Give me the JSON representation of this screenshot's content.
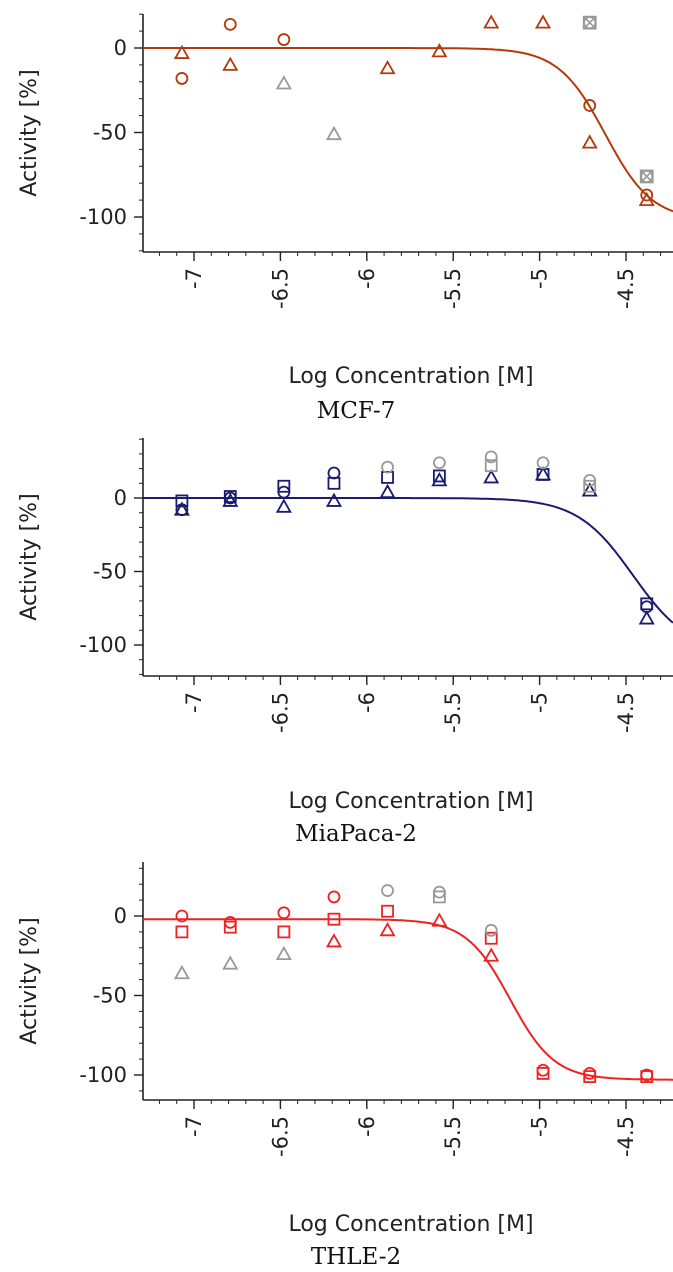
{
  "chart_data": [
    {
      "type": "scatter",
      "caption": "MCF-7",
      "xlabel": "Log Concentration [M]",
      "ylabel": "Activity [%]",
      "xlim": [
        -7.3,
        -4.22
      ],
      "ylim": [
        -120,
        20
      ],
      "x_ticks": [
        -7,
        -6.5,
        -6,
        -5.5,
        -5,
        -4.5
      ],
      "x_tick_labels": [
        "-7",
        "-6.5",
        "-6",
        "-5.5",
        "-5",
        "-4.5"
      ],
      "y_ticks": [
        0,
        -50,
        -100
      ],
      "y_tick_labels": [
        "0",
        "-50",
        "-100"
      ],
      "color": "#b33a0a",
      "excluded_color": "#999999",
      "curve": {
        "top": 0,
        "bottom": -102,
        "log_ac50": -4.62,
        "hill": 3.2
      },
      "series": [
        {
          "marker": "circle",
          "color": "#b33a0a",
          "x": [
            -7.07,
            -6.79,
            -6.48,
            -4.71,
            -4.38
          ],
          "y": [
            -18,
            14,
            5,
            -34,
            -87
          ]
        },
        {
          "marker": "triangle",
          "color": "#b33a0a",
          "x": [
            -7.07,
            -6.79,
            -5.88,
            -5.58,
            -5.28,
            -4.98,
            -4.71,
            -4.38
          ],
          "y": [
            -3,
            -10,
            -12,
            -2,
            15,
            15,
            -56,
            -90
          ]
        },
        {
          "marker": "triangle",
          "color": "#999999",
          "x": [
            -6.48,
            -6.19
          ],
          "y": [
            -21,
            -51
          ]
        },
        {
          "marker": "crossed-square",
          "color": "#999999",
          "x": [
            -4.71,
            -4.38
          ],
          "y": [
            15,
            -76
          ]
        }
      ]
    },
    {
      "type": "scatter",
      "caption": "MiaPaca-2",
      "xlabel": "Log Concentration [M]",
      "ylabel": "Activity [%]",
      "xlim": [
        -7.3,
        -4.22
      ],
      "ylim": [
        -120,
        40
      ],
      "x_ticks": [
        -7,
        -6.5,
        -6,
        -5.5,
        -5,
        -4.5
      ],
      "x_tick_labels": [
        "-7",
        "-6.5",
        "-6",
        "-5.5",
        "-5",
        "-4.5"
      ],
      "y_ticks": [
        0,
        -50,
        -100
      ],
      "y_tick_labels": [
        "0",
        "-50",
        "-100"
      ],
      "color": "#1a1a6e",
      "excluded_color": "#999999",
      "curve": {
        "top": 0,
        "bottom": -105,
        "log_ac50": -4.46,
        "hill": 2.7
      },
      "series": [
        {
          "marker": "circle",
          "color": "#1a1a6e",
          "x": [
            -7.07,
            -6.79,
            -6.48,
            -6.19,
            -4.38
          ],
          "y": [
            -8,
            0,
            4,
            17,
            -74
          ]
        },
        {
          "marker": "square",
          "color": "#1a1a6e",
          "x": [
            -7.07,
            -6.79,
            -6.48,
            -6.19,
            -5.88,
            -5.58,
            -4.98,
            -4.38
          ],
          "y": [
            -2,
            1,
            8,
            10,
            14,
            15,
            16,
            -72
          ]
        },
        {
          "marker": "triangle",
          "color": "#1a1a6e",
          "x": [
            -7.07,
            -6.79,
            -6.48,
            -6.19,
            -5.88,
            -5.58,
            -5.28,
            -4.98,
            -4.71,
            -4.38
          ],
          "y": [
            -8,
            -2,
            -6,
            -2,
            4,
            12,
            14,
            16,
            5,
            -82
          ]
        },
        {
          "marker": "circle",
          "color": "#999999",
          "x": [
            -5.88,
            -5.58,
            -5.28,
            -4.98,
            -4.71
          ],
          "y": [
            21,
            24,
            28,
            24,
            12
          ]
        },
        {
          "marker": "square",
          "color": "#999999",
          "x": [
            -5.28,
            -4.71
          ],
          "y": [
            22,
            8
          ]
        }
      ]
    },
    {
      "type": "scatter",
      "caption": "THLE-2",
      "xlabel": "Log Concentration [M]",
      "ylabel": "Activity [%]",
      "xlim": [
        -7.3,
        -4.22
      ],
      "ylim": [
        -120,
        35
      ],
      "x_ticks": [
        -7,
        -6.5,
        -6,
        -5.5,
        -5,
        -4.5
      ],
      "x_tick_labels": [
        "-7",
        "-6.5",
        "-6",
        "-5.5",
        "-5",
        "-4.5"
      ],
      "y_ticks": [
        0,
        -50,
        -100
      ],
      "y_tick_labels": [
        "0",
        "-50",
        "-100"
      ],
      "color": "#ee2222",
      "excluded_color": "#999999",
      "curve": {
        "top": -2,
        "bottom": -103,
        "log_ac50": -5.17,
        "hill": 3.4
      },
      "series": [
        {
          "marker": "circle",
          "color": "#ee2222",
          "x": [
            -7.07,
            -6.79,
            -6.48,
            -6.19,
            -4.98,
            -4.71,
            -4.38
          ],
          "y": [
            0,
            -4,
            2,
            12,
            -97,
            -99,
            -100
          ]
        },
        {
          "marker": "square",
          "color": "#ee2222",
          "x": [
            -7.07,
            -6.79,
            -6.48,
            -6.19,
            -5.88,
            -5.28,
            -4.98,
            -4.71,
            -4.38
          ],
          "y": [
            -10,
            -7,
            -10,
            -2,
            3,
            -14,
            -99,
            -101,
            -101
          ]
        },
        {
          "marker": "triangle",
          "color": "#ee2222",
          "x": [
            -6.19,
            -5.88,
            -5.58,
            -5.28
          ],
          "y": [
            -16,
            -9,
            -3,
            -25
          ]
        },
        {
          "marker": "triangle",
          "color": "#999999",
          "x": [
            -7.07,
            -6.79,
            -6.48
          ],
          "y": [
            -36,
            -30,
            -24
          ]
        },
        {
          "marker": "circle",
          "color": "#999999",
          "x": [
            -5.88,
            -5.58,
            -5.28
          ],
          "y": [
            16,
            15,
            -9
          ]
        },
        {
          "marker": "square",
          "color": "#999999",
          "x": [
            -5.58
          ],
          "y": [
            12
          ]
        }
      ]
    }
  ]
}
